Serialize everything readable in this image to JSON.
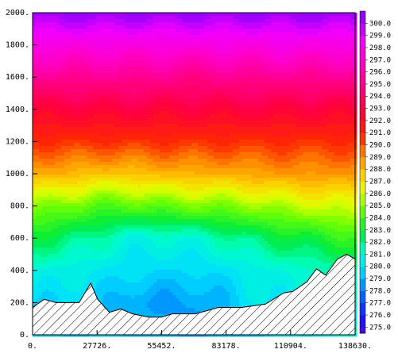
{
  "chart_data": {
    "type": "heatmap",
    "title": "",
    "xlabel": "",
    "ylabel": "",
    "x_ticks": [
      "0.",
      "27726.",
      "55452.",
      "83178.",
      "110904.",
      "138630."
    ],
    "y_ticks": [
      "0.",
      "200.",
      "400.",
      "600.",
      "800.",
      "1000.",
      "1200.",
      "1400.",
      "1600.",
      "1800.",
      "2000."
    ],
    "xlim": [
      0,
      138630
    ],
    "ylim": [
      0,
      2000
    ],
    "colorbar": {
      "labels": [
        "275.0",
        "276.0",
        "277.0",
        "278.0",
        "279.0",
        "280.0",
        "281.0",
        "282.0",
        "283.0",
        "284.0",
        "285.0",
        "286.0",
        "287.0",
        "288.0",
        "289.0",
        "290.0",
        "291.0",
        "292.0",
        "293.0",
        "294.0",
        "295.0",
        "296.0",
        "297.0",
        "298.0",
        "299.0",
        "300.0"
      ],
      "min": 275,
      "max": 300
    },
    "field": {
      "description_units": "temperature contour levels",
      "x": [
        0,
        13863,
        27726,
        41589,
        55452,
        69315,
        83178,
        97041,
        110904,
        124767,
        138630
      ],
      "y": [
        0,
        200,
        400,
        600,
        800,
        1000,
        1200,
        1400,
        1600,
        1800,
        2000
      ],
      "values": [
        [
          279.5,
          279.5,
          279.5,
          279.5,
          279.0,
          279.0,
          279.0,
          279.5,
          280.0,
          280.5,
          281.0
        ],
        [
          280.0,
          280.0,
          279.8,
          279.0,
          278.9,
          278.9,
          279.5,
          280.5,
          280.5,
          281.0,
          281.5
        ],
        [
          281.0,
          280.8,
          280.5,
          280.2,
          280.0,
          280.0,
          280.3,
          280.8,
          281.2,
          281.5,
          282.0
        ],
        [
          283.0,
          282.5,
          281.8,
          281.0,
          281.0,
          281.2,
          281.8,
          282.5,
          283.0,
          283.5,
          284.0
        ],
        [
          285.5,
          285.0,
          284.5,
          284.5,
          284.8,
          285.0,
          285.2,
          285.5,
          286.0,
          286.3,
          286.5
        ],
        [
          288.5,
          288.5,
          288.0,
          288.0,
          288.3,
          288.5,
          288.5,
          288.8,
          289.0,
          289.0,
          289.0
        ],
        [
          291.0,
          291.0,
          291.0,
          291.0,
          291.0,
          291.0,
          291.0,
          291.0,
          291.0,
          291.0,
          291.0
        ],
        [
          293.0,
          293.0,
          293.0,
          293.2,
          293.0,
          293.0,
          293.0,
          293.2,
          293.0,
          293.0,
          293.0
        ],
        [
          295.5,
          295.5,
          295.5,
          295.5,
          295.5,
          295.0,
          295.5,
          295.5,
          295.5,
          295.5,
          295.5
        ],
        [
          298.0,
          298.0,
          298.0,
          298.0,
          297.8,
          298.0,
          298.0,
          298.0,
          298.2,
          298.0,
          298.0
        ],
        [
          300.5,
          300.5,
          300.5,
          300.5,
          300.5,
          300.5,
          300.5,
          300.5,
          300.5,
          300.5,
          300.5
        ]
      ]
    },
    "terrain": {
      "x": [
        0,
        5000,
        10000,
        15000,
        20000,
        25000,
        28000,
        33000,
        38000,
        43000,
        50000,
        55452,
        60000,
        70000,
        80000,
        90000,
        100000,
        108000,
        112000,
        118000,
        122000,
        126000,
        131000,
        135000,
        138630
      ],
      "y": [
        170,
        220,
        200,
        200,
        200,
        320,
        220,
        140,
        160,
        130,
        110,
        110,
        130,
        130,
        170,
        170,
        190,
        260,
        270,
        330,
        410,
        370,
        470,
        500,
        470
      ]
    },
    "colors": {
      "terrain_fill": "#ffffff",
      "terrain_hatch": "#000000"
    }
  }
}
